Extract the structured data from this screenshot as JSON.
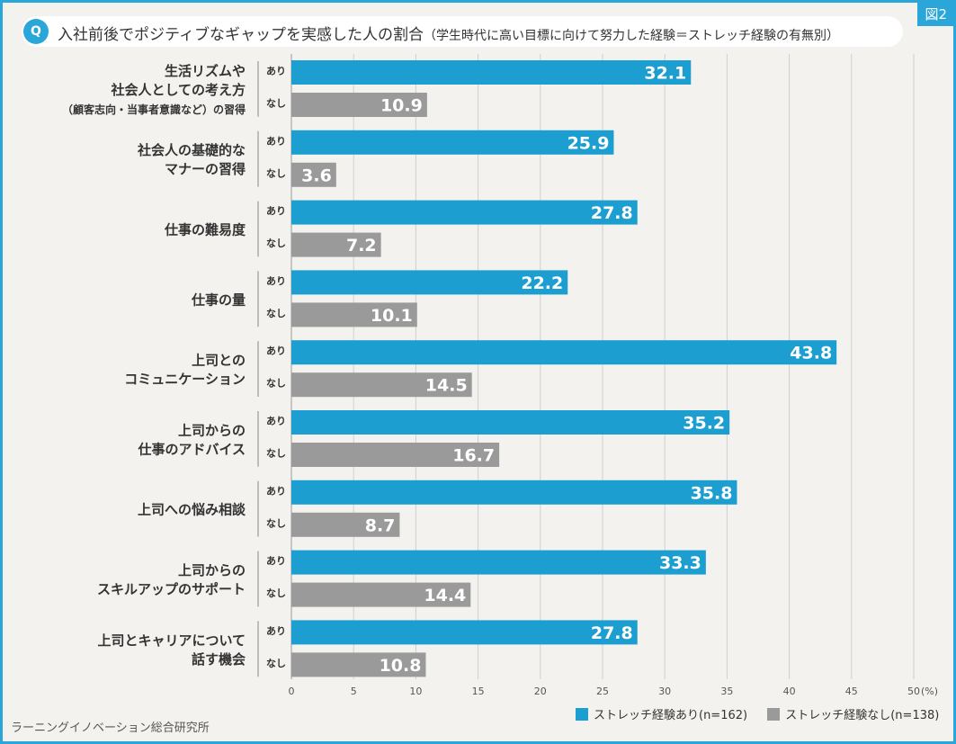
{
  "figure_tag": "図2",
  "question_badge": "Q",
  "question_main": "入社前後でポジティブなギャップを実感した人の割合",
  "question_sub": "（学生時代に高い目標に向けて努力した経験＝ストレッチ経験の有無別）",
  "source": "ラーニングイノベーション総合研究所",
  "colors": {
    "with": "#1c9fd0",
    "without": "#9a9a9a",
    "frame": "#2ba6d8"
  },
  "chart_data": {
    "type": "bar",
    "orientation": "horizontal",
    "categories": [
      [
        "生活リズムや",
        "社会人としての考え方",
        "（顧客志向・当事者意識など）の習得"
      ],
      [
        "社会人の基礎的な",
        "マナーの習得"
      ],
      [
        "仕事の難易度"
      ],
      [
        "仕事の量"
      ],
      [
        "上司との",
        "コミュニケーション"
      ],
      [
        "上司からの",
        "仕事のアドバイス"
      ],
      [
        "上司への悩み相談"
      ],
      [
        "上司からの",
        "スキルアップのサポート"
      ],
      [
        "上司とキャリアについて",
        "話す機会"
      ]
    ],
    "group_tags": [
      "あり",
      "なし"
    ],
    "series": [
      {
        "name": "ストレッチ経験あり(n=162)",
        "values": [
          32.1,
          25.9,
          27.8,
          22.2,
          43.8,
          35.2,
          35.8,
          33.3,
          27.8
        ]
      },
      {
        "name": "ストレッチ経験なし(n=138)",
        "values": [
          10.9,
          3.6,
          7.2,
          10.1,
          14.5,
          16.7,
          8.7,
          14.4,
          10.8
        ]
      }
    ],
    "xlim": [
      0,
      50
    ],
    "xticks": [
      "0",
      "5",
      "10",
      "15",
      "20",
      "25",
      "30",
      "35",
      "40",
      "45",
      "50"
    ],
    "xunit": "(%)",
    "grid": true
  }
}
